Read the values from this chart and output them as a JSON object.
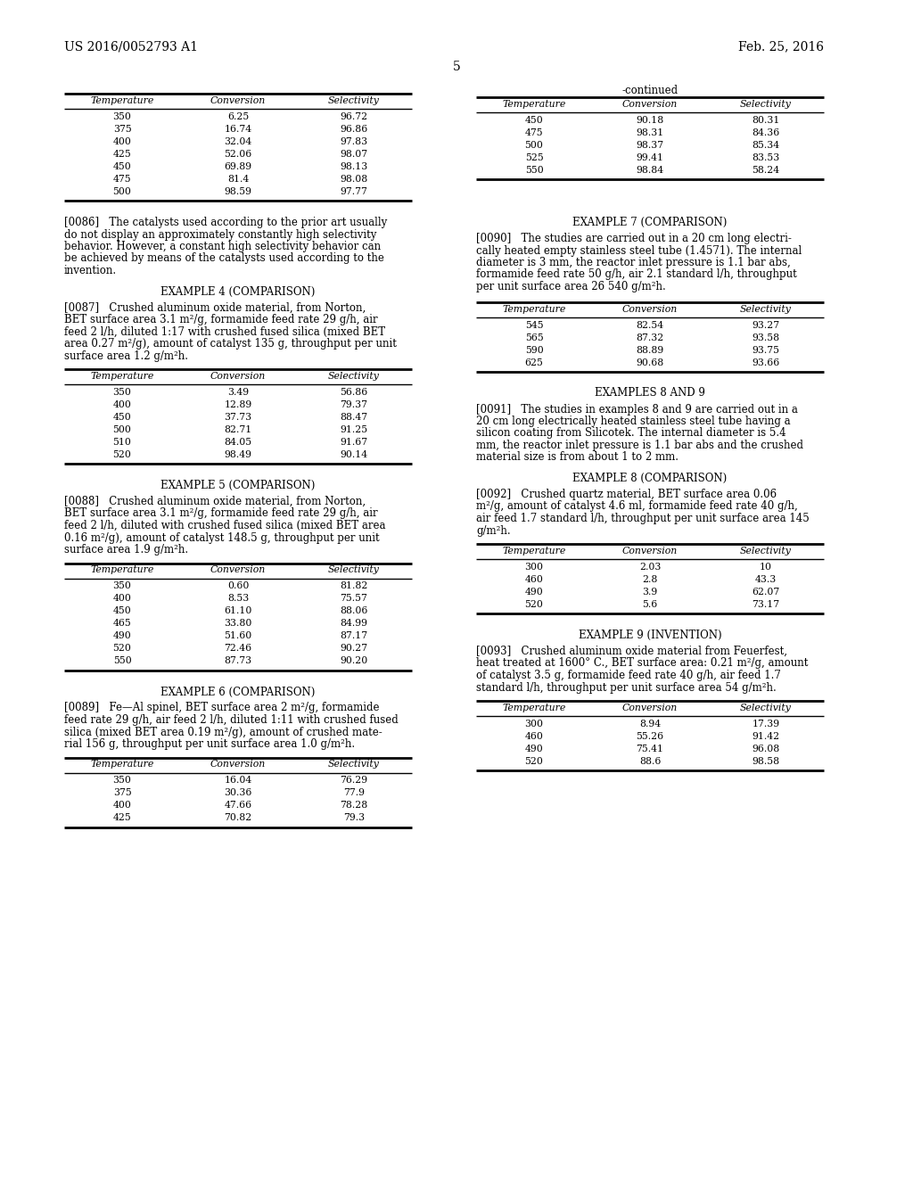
{
  "header_left": "US 2016/0052793 A1",
  "header_right": "Feb. 25, 2016",
  "page_number": "5",
  "background_color": "#ffffff",
  "table_top_left": {
    "headers": [
      "Temperature",
      "Conversion",
      "Selectivity"
    ],
    "rows": [
      [
        "350",
        "6.25",
        "96.72"
      ],
      [
        "375",
        "16.74",
        "96.86"
      ],
      [
        "400",
        "32.04",
        "97.83"
      ],
      [
        "425",
        "52.06",
        "98.07"
      ],
      [
        "450",
        "69.89",
        "98.13"
      ],
      [
        "475",
        "81.4",
        "98.08"
      ],
      [
        "500",
        "98.59",
        "97.77"
      ]
    ]
  },
  "table_top_right": {
    "continued_label": "-continued",
    "headers": [
      "Temperature",
      "Conversion",
      "Selectivity"
    ],
    "rows": [
      [
        "450",
        "90.18",
        "80.31"
      ],
      [
        "475",
        "98.31",
        "84.36"
      ],
      [
        "500",
        "98.37",
        "85.34"
      ],
      [
        "525",
        "99.41",
        "83.53"
      ],
      [
        "550",
        "98.84",
        "58.24"
      ]
    ]
  },
  "example4_title": "EXAMPLE 4 (COMPARISON)",
  "para_0086_lines": [
    "[0086]   The catalysts used according to the prior art usually",
    "do not display an approximately constantly high selectivity",
    "behavior. However, a constant high selectivity behavior can",
    "be achieved by means of the catalysts used according to the",
    "invention."
  ],
  "para_0087_lines": [
    "[0087]   Crushed aluminum oxide material, from Norton,",
    "BET surface area 3.1 m²/g, formamide feed rate 29 g/h, air",
    "feed 2 l/h, diluted 1:17 with crushed fused silica (mixed BET",
    "area 0.27 m²/g), amount of catalyst 135 g, throughput per unit",
    "surface area 1.2 g/m²h."
  ],
  "table_ex4": {
    "headers": [
      "Temperature",
      "Conversion",
      "Selectivity"
    ],
    "rows": [
      [
        "350",
        "3.49",
        "56.86"
      ],
      [
        "400",
        "12.89",
        "79.37"
      ],
      [
        "450",
        "37.73",
        "88.47"
      ],
      [
        "500",
        "82.71",
        "91.25"
      ],
      [
        "510",
        "84.05",
        "91.67"
      ],
      [
        "520",
        "98.49",
        "90.14"
      ]
    ]
  },
  "example5_title": "EXAMPLE 5 (COMPARISON)",
  "para_0088_lines": [
    "[0088]   Crushed aluminum oxide material, from Norton,",
    "BET surface area 3.1 m²/g, formamide feed rate 29 g/h, air",
    "feed 2 l/h, diluted with crushed fused silica (mixed BET area",
    "0.16 m²/g), amount of catalyst 148.5 g, throughput per unit",
    "surface area 1.9 g/m²h."
  ],
  "table_ex5": {
    "headers": [
      "Temperature",
      "Conversion",
      "Selectivity"
    ],
    "rows": [
      [
        "350",
        "0.60",
        "81.82"
      ],
      [
        "400",
        "8.53",
        "75.57"
      ],
      [
        "450",
        "61.10",
        "88.06"
      ],
      [
        "465",
        "33.80",
        "84.99"
      ],
      [
        "490",
        "51.60",
        "87.17"
      ],
      [
        "520",
        "72.46",
        "90.27"
      ],
      [
        "550",
        "87.73",
        "90.20"
      ]
    ]
  },
  "example6_title": "EXAMPLE 6 (COMPARISON)",
  "para_0089_lines": [
    "[0089]   Fe—Al spinel, BET surface area 2 m²/g, formamide",
    "feed rate 29 g/h, air feed 2 l/h, diluted 1:11 with crushed fused",
    "silica (mixed BET area 0.19 m²/g), amount of crushed mate-",
    "rial 156 g, throughput per unit surface area 1.0 g/m²h."
  ],
  "table_ex6": {
    "headers": [
      "Temperature",
      "Conversion",
      "Selectivity"
    ],
    "rows": [
      [
        "350",
        "16.04",
        "76.29"
      ],
      [
        "375",
        "30.36",
        "77.9"
      ],
      [
        "400",
        "47.66",
        "78.28"
      ],
      [
        "425",
        "70.82",
        "79.3"
      ]
    ]
  },
  "example7_title": "EXAMPLE 7 (COMPARISON)",
  "para_0090_lines": [
    "[0090]   The studies are carried out in a 20 cm long electri-",
    "cally heated empty stainless steel tube (1.4571). The internal",
    "diameter is 3 mm, the reactor inlet pressure is 1.1 bar abs,",
    "formamide feed rate 50 g/h, air 2.1 standard l/h, throughput",
    "per unit surface area 26 540 g/m²h."
  ],
  "table_ex7": {
    "headers": [
      "Temperature",
      "Conversion",
      "Selectivity"
    ],
    "rows": [
      [
        "545",
        "82.54",
        "93.27"
      ],
      [
        "565",
        "87.32",
        "93.58"
      ],
      [
        "590",
        "88.89",
        "93.75"
      ],
      [
        "625",
        "90.68",
        "93.66"
      ]
    ]
  },
  "examples89_title": "EXAMPLES 8 AND 9",
  "para_0091_lines": [
    "[0091]   The studies in examples 8 and 9 are carried out in a",
    "20 cm long electrically heated stainless steel tube having a",
    "silicon coating from Silicotek. The internal diameter is 5.4",
    "mm, the reactor inlet pressure is 1.1 bar abs and the crushed",
    "material size is from about 1 to 2 mm."
  ],
  "example8_title": "EXAMPLE 8 (COMPARISON)",
  "para_0092_lines": [
    "[0092]   Crushed quartz material, BET surface area 0.06",
    "m²/g, amount of catalyst 4.6 ml, formamide feed rate 40 g/h,",
    "air feed 1.7 standard l/h, throughput per unit surface area 145",
    "g/m²h."
  ],
  "table_ex8": {
    "headers": [
      "Temperature",
      "Conversion",
      "Selectivity"
    ],
    "rows": [
      [
        "300",
        "2.03",
        "10"
      ],
      [
        "460",
        "2.8",
        "43.3"
      ],
      [
        "490",
        "3.9",
        "62.07"
      ],
      [
        "520",
        "5.6",
        "73.17"
      ]
    ]
  },
  "example9_title": "EXAMPLE 9 (INVENTION)",
  "para_0093_lines": [
    "[0093]   Crushed aluminum oxide material from Feuerfest,",
    "heat treated at 1600° C., BET surface area: 0.21 m²/g, amount",
    "of catalyst 3.5 g, formamide feed rate 40 g/h, air feed 1.7",
    "standard l/h, throughput per unit surface area 54 g/m²h."
  ],
  "table_ex9": {
    "headers": [
      "Temperature",
      "Conversion",
      "Selectivity"
    ],
    "rows": [
      [
        "300",
        "8.94",
        "17.39"
      ],
      [
        "460",
        "55.26",
        "91.42"
      ],
      [
        "490",
        "75.41",
        "96.08"
      ],
      [
        "520",
        "88.6",
        "98.58"
      ]
    ]
  }
}
